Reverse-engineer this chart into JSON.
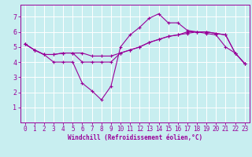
{
  "background_color": "#c8eef0",
  "line_color": "#990099",
  "grid_color": "#ffffff",
  "xlabel": "Windchill (Refroidissement éolien,°C)",
  "xlim": [
    -0.5,
    23.5
  ],
  "ylim": [
    0,
    7.8
  ],
  "xticks": [
    0,
    1,
    2,
    3,
    4,
    5,
    6,
    7,
    8,
    9,
    10,
    11,
    12,
    13,
    14,
    15,
    16,
    17,
    18,
    19,
    20,
    21,
    22,
    23
  ],
  "yticks": [
    1,
    2,
    3,
    4,
    5,
    6,
    7
  ],
  "series1_x": [
    0,
    1,
    2,
    3,
    4,
    5,
    6,
    7,
    8,
    9,
    10,
    11,
    12,
    13,
    14,
    15,
    16,
    17,
    18,
    19,
    20,
    21,
    22,
    23
  ],
  "series1_y": [
    5.2,
    4.8,
    4.5,
    4.5,
    4.6,
    4.6,
    4.6,
    4.4,
    4.4,
    4.4,
    4.6,
    4.8,
    5.0,
    5.3,
    5.5,
    5.7,
    5.8,
    5.9,
    6.0,
    6.0,
    5.9,
    5.8,
    4.6,
    3.9
  ],
  "series2_x": [
    0,
    1,
    2,
    3,
    4,
    5,
    6,
    7,
    8,
    9,
    10,
    11,
    12,
    13,
    14,
    15,
    16,
    17,
    18,
    19,
    20,
    21,
    22,
    23
  ],
  "series2_y": [
    5.2,
    4.8,
    4.5,
    4.0,
    4.0,
    4.0,
    2.6,
    2.1,
    1.5,
    2.4,
    5.0,
    5.8,
    6.3,
    6.9,
    7.2,
    6.6,
    6.6,
    6.1,
    6.0,
    5.9,
    5.8,
    5.0,
    4.6,
    3.9
  ],
  "series3_x": [
    0,
    1,
    2,
    3,
    4,
    5,
    6,
    7,
    8,
    9,
    10,
    11,
    12,
    13,
    14,
    15,
    16,
    17,
    18,
    19,
    20,
    21,
    22,
    23
  ],
  "series3_y": [
    5.2,
    4.8,
    4.5,
    4.5,
    4.6,
    4.6,
    4.0,
    4.0,
    4.0,
    4.0,
    4.6,
    4.8,
    5.0,
    5.3,
    5.5,
    5.7,
    5.8,
    6.0,
    6.0,
    6.0,
    5.9,
    5.8,
    4.6,
    3.9
  ],
  "tick_fontsize": 5.5,
  "xlabel_fontsize": 5.5
}
